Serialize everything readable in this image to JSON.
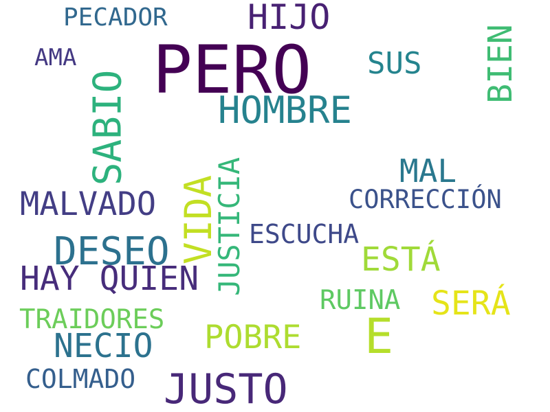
{
  "words": [
    {
      "text": "PERO",
      "color": "#440154"
    },
    {
      "text": "HIJO",
      "color": "#482173"
    },
    {
      "text": "PECADOR",
      "color": "#31688e"
    },
    {
      "text": "AMA",
      "color": "#443983"
    },
    {
      "text": "SUS",
      "color": "#25848e"
    },
    {
      "text": "BIEN",
      "color": "#3fbc73"
    },
    {
      "text": "HOMBRE",
      "color": "#26828e"
    },
    {
      "text": "SABIO",
      "color": "#2db27d"
    },
    {
      "text": "MAL",
      "color": "#2a788e"
    },
    {
      "text": "CORRECCIÓN",
      "color": "#3b528b"
    },
    {
      "text": "MALVADO",
      "color": "#433e85"
    },
    {
      "text": "VIDA",
      "color": "#c2df23"
    },
    {
      "text": "JUSTICIA",
      "color": "#35b779"
    },
    {
      "text": "ESCUCHA",
      "color": "#3e4989"
    },
    {
      "text": "DESEO",
      "color": "#2c718e"
    },
    {
      "text": "ESTÁ",
      "color": "#a0da39"
    },
    {
      "text": "HAY QUIEN",
      "color": "#472d7b"
    },
    {
      "text": "RUINA",
      "color": "#5ec962"
    },
    {
      "text": "SERÁ",
      "color": "#e5e419"
    },
    {
      "text": "TRAIDORES",
      "color": "#6ccd5a"
    },
    {
      "text": "E",
      "color": "#b5de2b"
    },
    {
      "text": "POBRE",
      "color": "#addc30"
    },
    {
      "text": "NECIO",
      "color": "#2c728e"
    },
    {
      "text": "COLMADO",
      "color": "#355f8d"
    },
    {
      "text": "JUSTO",
      "color": "#482878"
    }
  ]
}
